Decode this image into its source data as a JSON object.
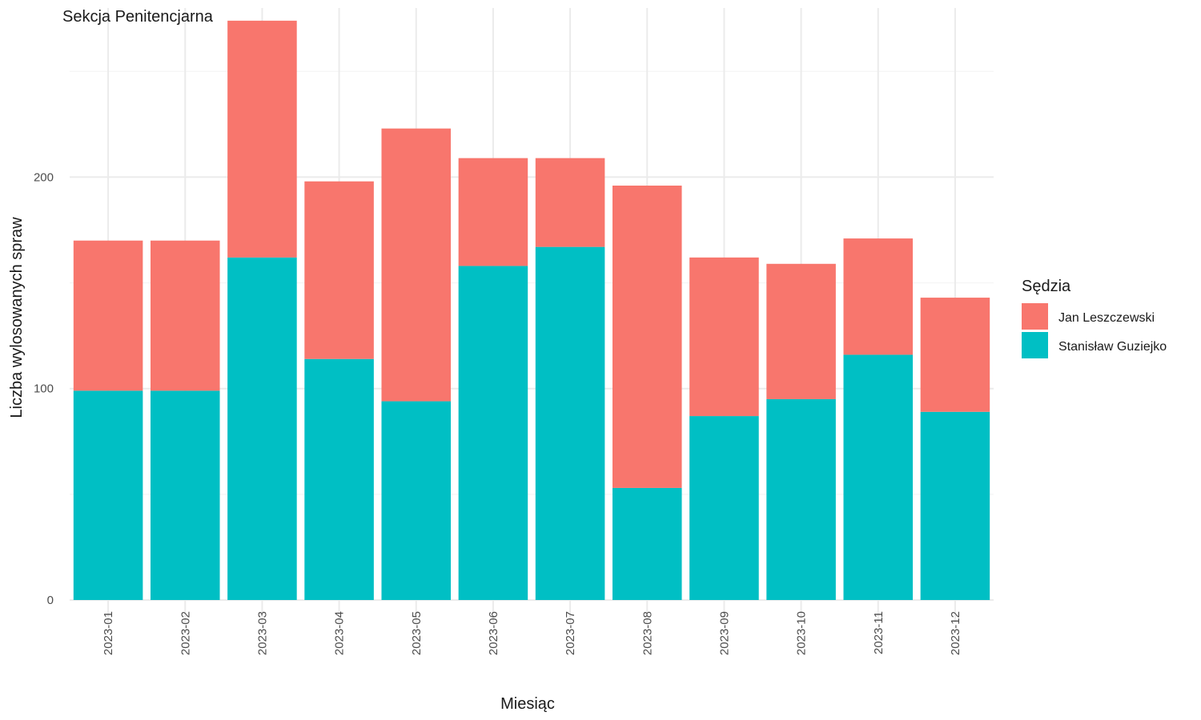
{
  "chart_data": {
    "type": "bar",
    "stacked": true,
    "title": "Sekcja Penitencjarna",
    "xlabel": "Miesiąc",
    "ylabel": "Liczba wylosowanych spraw",
    "ylim": [
      0,
      280
    ],
    "y_ticks": [
      "0",
      "100",
      "200"
    ],
    "y_tick_values": [
      0,
      100,
      200
    ],
    "grid": true,
    "legend": {
      "title": "Sędzia",
      "placement": "right"
    },
    "categories": [
      "2023-01",
      "2023-02",
      "2023-03",
      "2023-04",
      "2023-05",
      "2023-06",
      "2023-07",
      "2023-08",
      "2023-09",
      "2023-10",
      "2023-11",
      "2023-12"
    ],
    "series": [
      {
        "name": "Stanisław Guziejko",
        "color": "#00BFC4",
        "values": [
          99,
          99,
          162,
          114,
          94,
          158,
          167,
          53,
          87,
          95,
          116,
          89
        ]
      },
      {
        "name": "Jan Leszczewski",
        "color": "#F8766D",
        "values": [
          71,
          71,
          112,
          84,
          129,
          51,
          42,
          143,
          75,
          64,
          55,
          54
        ]
      }
    ],
    "legend_order": [
      "Jan Leszczewski",
      "Stanisław Guziejko"
    ]
  }
}
